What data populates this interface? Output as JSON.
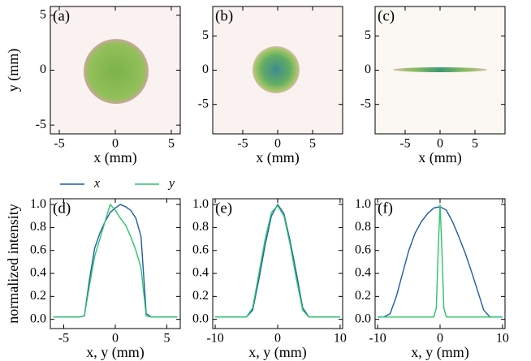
{
  "chart_data": [
    {
      "type": "image",
      "label": "(a)",
      "xlabel": "x (mm)",
      "ylabel": "y (mm)",
      "xlim": [
        -5.8,
        5.8
      ],
      "ylim": [
        -5.8,
        5.8
      ],
      "xticks": [
        -5,
        0,
        5
      ],
      "yticks": [
        -5,
        0,
        5
      ]
    },
    {
      "type": "image",
      "label": "(b)",
      "xlabel": "x (mm)",
      "xlim": [
        -9.3,
        9.3
      ],
      "ylim": [
        -9.3,
        9.3
      ],
      "xticks": [
        -5,
        0,
        5
      ],
      "yticks": [
        -5,
        0,
        5
      ]
    },
    {
      "type": "image",
      "label": "(c)",
      "xlabel": "x (mm)",
      "xlim": [
        -9.3,
        9.3
      ],
      "ylim": [
        -9.3,
        9.3
      ],
      "xticks": [
        -5,
        0,
        5
      ],
      "yticks": [
        -5,
        0,
        5
      ]
    },
    {
      "type": "line",
      "label": "(d)",
      "xlabel": "x, y (mm)",
      "ylabel": "normalized intensity",
      "legend": "above",
      "xlim": [
        -6.3,
        6.3
      ],
      "ylim": [
        -0.08,
        1.05
      ],
      "xticks": [
        -5,
        0,
        5
      ],
      "yticks": [
        {
          "value": 0,
          "label": "0.0"
        },
        {
          "value": 0.2,
          "label": "0.2"
        },
        {
          "value": 0.4,
          "label": "0.4"
        },
        {
          "value": 0.6,
          "label": "0.6"
        },
        {
          "value": 0.8,
          "label": "0.8"
        },
        {
          "value": 1,
          "label": "1.0"
        }
      ],
      "x": [
        -6,
        -5.5,
        -5,
        -4.5,
        -4,
        -3.5,
        -3,
        -2.5,
        -2,
        -1.5,
        -1,
        -0.5,
        0,
        0.5,
        1,
        1.5,
        2,
        2.5,
        3,
        3.5,
        4,
        4.5,
        5,
        5.5,
        6
      ],
      "series": [
        {
          "name": "x",
          "color": "#1f5ba8",
          "values": [
            0.02,
            0.02,
            0.02,
            0.02,
            0.02,
            0.02,
            0.03,
            0.35,
            0.62,
            0.75,
            0.85,
            0.93,
            0.97,
            1.0,
            0.98,
            0.95,
            0.88,
            0.72,
            0.05,
            0.02,
            0.02,
            0.02,
            0.02,
            0.02,
            0.02
          ]
        },
        {
          "name": "y",
          "color": "#2bc46a",
          "values": [
            0.02,
            0.02,
            0.02,
            0.02,
            0.02,
            0.02,
            0.03,
            0.3,
            0.55,
            0.7,
            0.85,
            1.0,
            0.95,
            0.88,
            0.82,
            0.72,
            0.6,
            0.45,
            0.03,
            0.02,
            0.02,
            0.02,
            0.02,
            0.02,
            0.02
          ]
        }
      ]
    },
    {
      "type": "line",
      "label": "(e)",
      "xlabel": "x, y (mm)",
      "xlim": [
        -10.4,
        10.4
      ],
      "ylim": [
        -0.08,
        1.05
      ],
      "xticks": [
        -10,
        0,
        10
      ],
      "yticks": [
        {
          "value": 0,
          "label": "0.0"
        },
        {
          "value": 0.2,
          "label": "0.2"
        },
        {
          "value": 0.4,
          "label": "0.4"
        },
        {
          "value": 0.6,
          "label": "0.6"
        },
        {
          "value": 0.8,
          "label": "0.8"
        },
        {
          "value": 1,
          "label": "1.0"
        }
      ],
      "x": [
        -10,
        -9,
        -8,
        -7,
        -6,
        -5,
        -4,
        -3,
        -2,
        -1,
        0,
        1,
        2,
        3,
        4,
        5,
        6,
        7,
        8,
        9,
        10
      ],
      "series": [
        {
          "name": "x",
          "color": "#1f5ba8",
          "values": [
            0.02,
            0.02,
            0.02,
            0.02,
            0.02,
            0.02,
            0.08,
            0.35,
            0.65,
            0.9,
            1.0,
            0.92,
            0.68,
            0.4,
            0.1,
            0.02,
            0.02,
            0.02,
            0.02,
            0.02,
            0.02
          ]
        },
        {
          "name": "y",
          "color": "#2bc46a",
          "values": [
            0.02,
            0.02,
            0.02,
            0.02,
            0.02,
            0.02,
            0.1,
            0.4,
            0.7,
            0.93,
            0.99,
            0.9,
            0.65,
            0.35,
            0.08,
            0.02,
            0.02,
            0.02,
            0.02,
            0.02,
            0.02
          ]
        }
      ]
    },
    {
      "type": "line",
      "label": "(f)",
      "xlabel": "x, y (mm)",
      "xlim": [
        -10.4,
        10.4
      ],
      "ylim": [
        -0.08,
        1.05
      ],
      "xticks": [
        -10,
        0,
        10
      ],
      "yticks": [
        {
          "value": 0,
          "label": "0.0"
        },
        {
          "value": 0.2,
          "label": "0.2"
        },
        {
          "value": 0.4,
          "label": "0.4"
        },
        {
          "value": 0.6,
          "label": "0.6"
        },
        {
          "value": 0.8,
          "label": "0.8"
        },
        {
          "value": 1,
          "label": "1.0"
        }
      ],
      "x": [
        -10,
        -9,
        -8,
        -7,
        -6,
        -5,
        -4,
        -3,
        -2,
        -1,
        0,
        1,
        2,
        3,
        4,
        5,
        6,
        7,
        8,
        9,
        10
      ],
      "series": [
        {
          "name": "x",
          "color": "#1f5ba8",
          "values": [
            0.02,
            0.02,
            0.05,
            0.2,
            0.4,
            0.6,
            0.75,
            0.85,
            0.92,
            0.97,
            0.98,
            0.95,
            0.85,
            0.72,
            0.58,
            0.42,
            0.25,
            0.08,
            0.02,
            0.02,
            0.02
          ]
        },
        {
          "name": "y",
          "color": "#2bc46a",
          "x": [
            -10,
            -1,
            -0.6,
            -0.3,
            0,
            0.3,
            0.6,
            1,
            10
          ],
          "values": [
            0.02,
            0.02,
            0.1,
            0.6,
            1.0,
            0.6,
            0.1,
            0.02,
            0.02
          ]
        }
      ]
    }
  ]
}
